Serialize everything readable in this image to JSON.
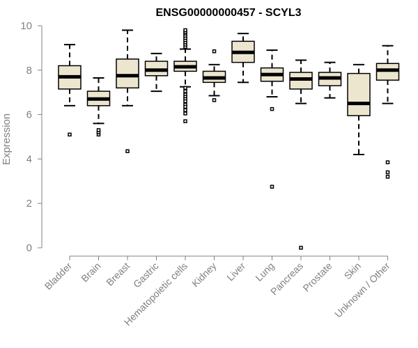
{
  "chart_data": {
    "type": "boxplot",
    "title": "ENSG00000000457 - SCYL3",
    "xlabel": "",
    "ylabel": "Expression",
    "ylim": [
      0,
      10
    ],
    "yticks": [
      0,
      2,
      4,
      6,
      8,
      10
    ],
    "colors": {
      "box_fill": "#ede6cf",
      "stroke": "#000000",
      "axis": "#808080"
    },
    "categories": [
      "Bladder",
      "Brain",
      "Breast",
      "Gastric",
      "Hematopoietic cells",
      "Kidney",
      "Liver",
      "Lung",
      "Pancreas",
      "Prostate",
      "Skin",
      "Unknown / Other"
    ],
    "boxes": [
      {
        "category": "Bladder",
        "whisker_low": 6.4,
        "q1": 7.15,
        "median": 7.7,
        "q3": 8.2,
        "whisker_high": 9.15,
        "outliers": [
          5.1
        ]
      },
      {
        "category": "Brain",
        "whisker_low": 5.6,
        "q1": 6.4,
        "median": 6.7,
        "q3": 7.05,
        "whisker_high": 7.65,
        "outliers": [
          5.1,
          5.2,
          5.3
        ]
      },
      {
        "category": "Breast",
        "whisker_low": 6.4,
        "q1": 7.2,
        "median": 7.75,
        "q3": 8.5,
        "whisker_high": 9.8,
        "outliers": [
          4.35
        ]
      },
      {
        "category": "Gastric",
        "whisker_low": 7.05,
        "q1": 7.75,
        "median": 8.0,
        "q3": 8.4,
        "whisker_high": 8.75,
        "outliers": []
      },
      {
        "category": "Hematopoietic cells",
        "whisker_low": 7.25,
        "q1": 7.95,
        "median": 8.15,
        "q3": 8.4,
        "whisker_high": 8.95,
        "outliers": [
          9.05,
          9.15,
          9.25,
          9.35,
          9.45,
          9.55,
          9.65,
          9.72,
          9.8,
          7.2,
          7.05,
          6.9,
          6.8,
          6.7,
          6.6,
          6.45,
          6.35,
          6.2,
          6.05,
          5.7
        ]
      },
      {
        "category": "Kidney",
        "whisker_low": 6.85,
        "q1": 7.45,
        "median": 7.65,
        "q3": 7.95,
        "whisker_high": 8.25,
        "outliers": [
          8.85,
          6.65
        ]
      },
      {
        "category": "Liver",
        "whisker_low": 7.45,
        "q1": 8.35,
        "median": 8.8,
        "q3": 9.3,
        "whisker_high": 9.65,
        "outliers": []
      },
      {
        "category": "Lung",
        "whisker_low": 6.8,
        "q1": 7.5,
        "median": 7.8,
        "q3": 8.1,
        "whisker_high": 8.9,
        "outliers": [
          6.25,
          2.75
        ]
      },
      {
        "category": "Pancreas",
        "whisker_low": 6.5,
        "q1": 7.15,
        "median": 7.6,
        "q3": 7.9,
        "whisker_high": 8.45,
        "outliers": [
          0.0
        ]
      },
      {
        "category": "Prostate",
        "whisker_low": 6.75,
        "q1": 7.3,
        "median": 7.65,
        "q3": 7.9,
        "whisker_high": 8.35,
        "outliers": []
      },
      {
        "category": "Skin",
        "whisker_low": 4.2,
        "q1": 5.95,
        "median": 6.5,
        "q3": 7.85,
        "whisker_high": 8.25,
        "outliers": []
      },
      {
        "category": "Unknown / Other",
        "whisker_low": 6.5,
        "q1": 7.55,
        "median": 8.0,
        "q3": 8.3,
        "whisker_high": 9.1,
        "outliers": [
          3.85,
          3.4,
          3.2
        ]
      }
    ]
  }
}
